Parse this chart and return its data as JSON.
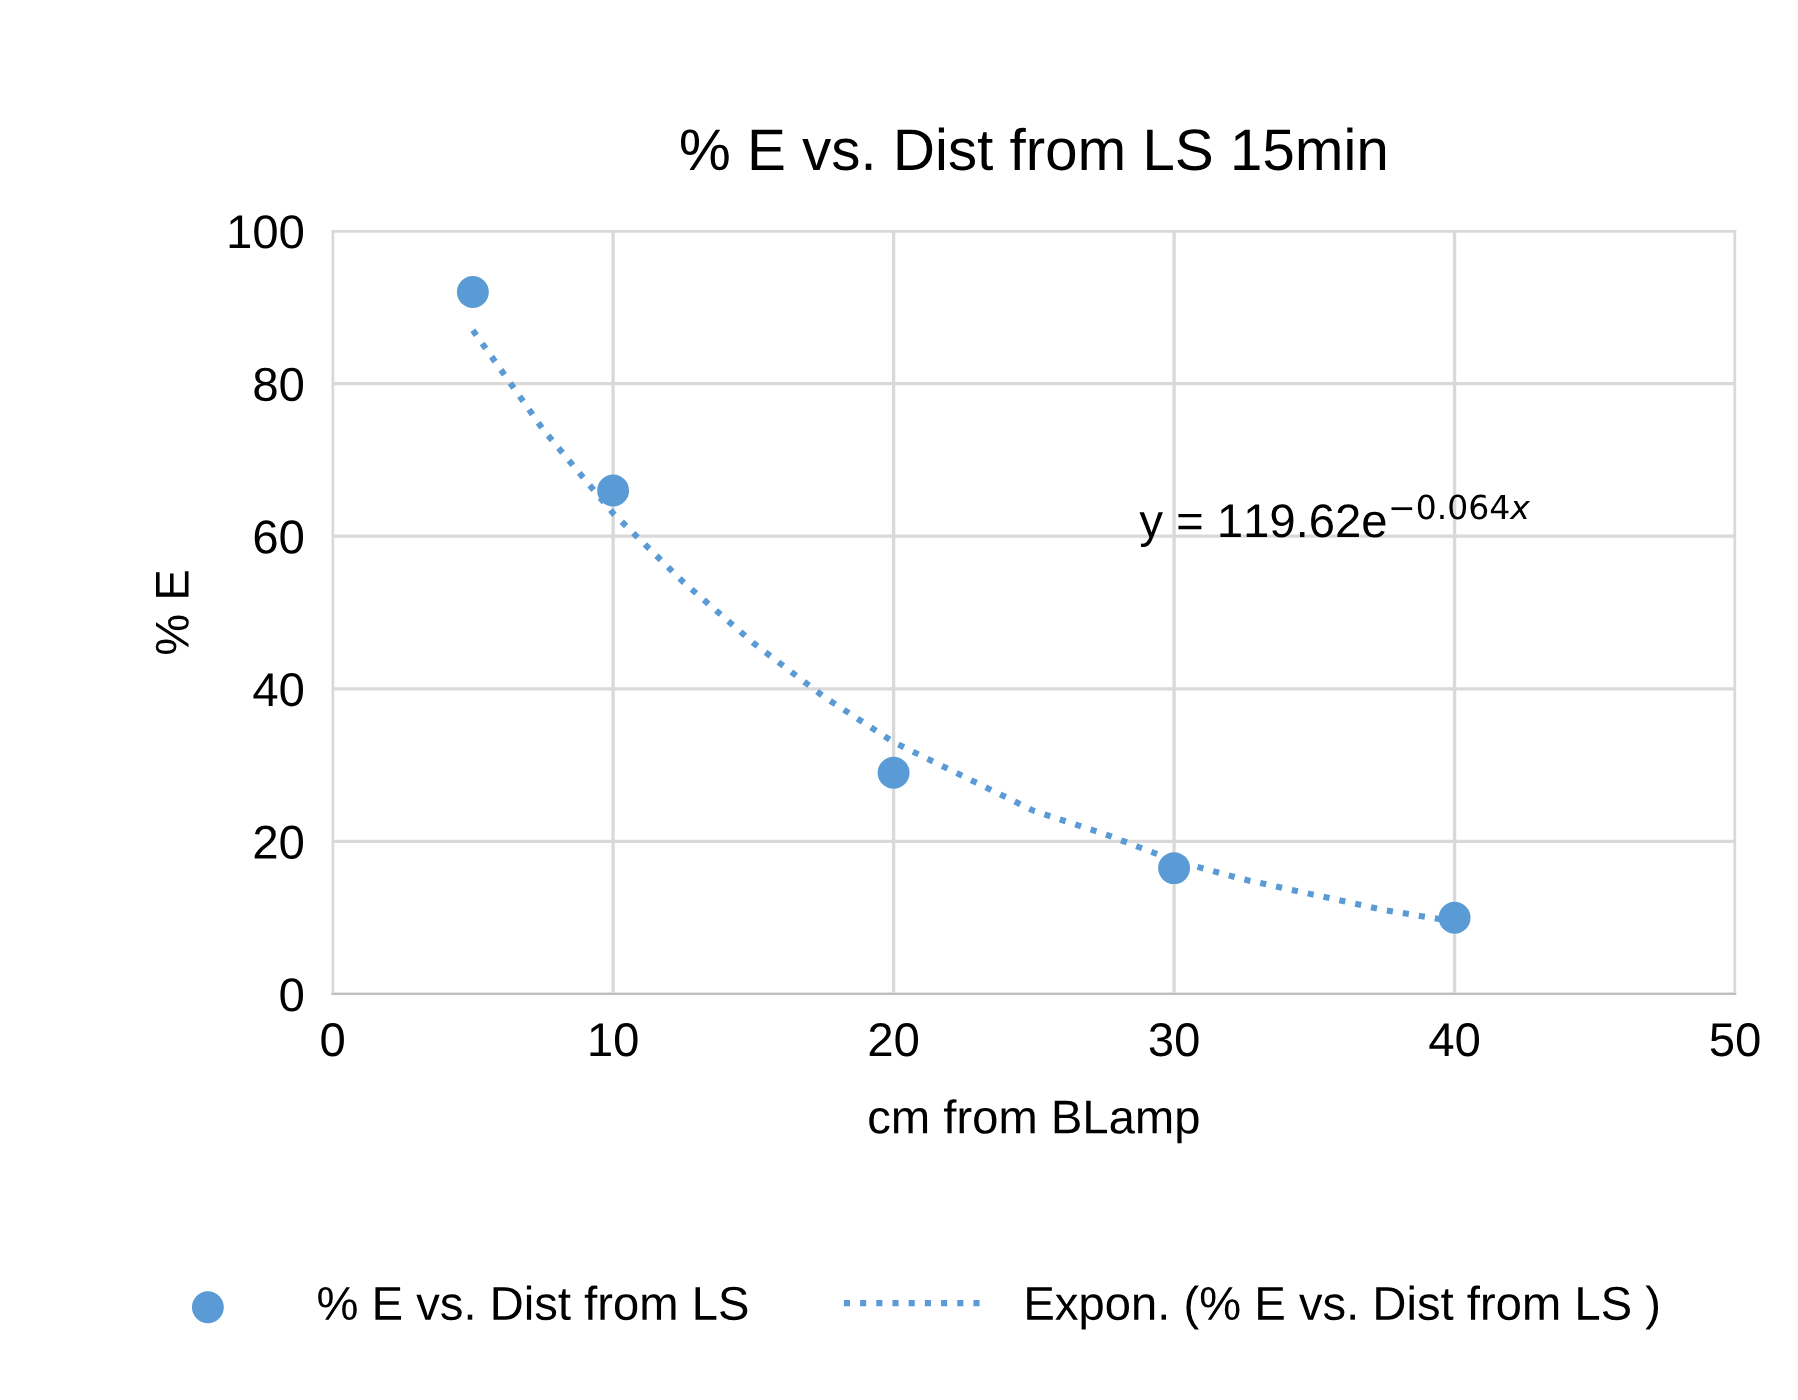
{
  "chart_data": {
    "type": "scatter",
    "title": "% E vs. Dist from LS 15min",
    "xlabel": "cm from BLamp",
    "ylabel": "% E",
    "series": [
      {
        "name": "% E vs. Dist from LS",
        "color": "#5b9bd5",
        "marker": "circle",
        "x": [
          5,
          10,
          20,
          30,
          40
        ],
        "values": [
          92,
          66,
          29,
          16.5,
          10
        ]
      },
      {
        "name": "Expon. (% E vs. Dist from LS )",
        "type": "line",
        "color": "#5b9bd5",
        "line_style": "dotted",
        "x": [
          5,
          7.5,
          10,
          12.5,
          15,
          17.5,
          20,
          22.5,
          25,
          27.5,
          30,
          32.5,
          35,
          37.5,
          40
        ],
        "values": [
          87,
          74,
          63,
          54,
          46,
          39,
          33,
          28.5,
          24,
          21,
          17.5,
          15,
          13,
          11,
          9.5
        ]
      }
    ],
    "annotations": [
      "y = 119.62e$^{−0.064x}$"
    ],
    "xlim": [
      0,
      50
    ],
    "xticks": [
      0,
      10,
      20,
      30,
      40,
      50
    ],
    "ylim": [
      0,
      100
    ],
    "yticks": [
      0,
      20,
      40,
      60,
      80,
      100
    ],
    "grid": true,
    "legend": "bottom"
  }
}
